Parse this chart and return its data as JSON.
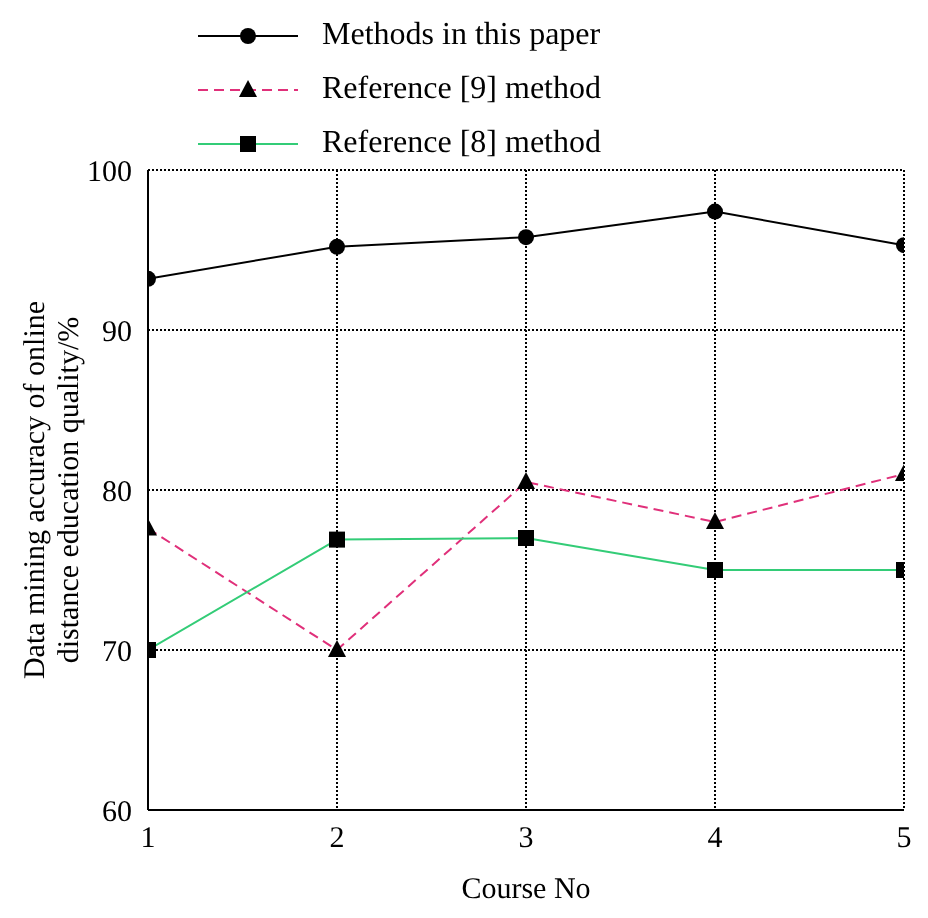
{
  "chart_data": {
    "type": "line",
    "xlabel": "Course No",
    "ylabel": "Data mining accuracy of online distance education quality/%",
    "x": [
      1,
      2,
      3,
      4,
      5
    ],
    "xlim": [
      1,
      5
    ],
    "xticks": [
      1,
      2,
      3,
      4,
      5
    ],
    "ylim": [
      60,
      100
    ],
    "yticks": [
      60,
      70,
      80,
      90,
      100
    ],
    "grid": true,
    "legend": "top",
    "series": [
      {
        "name": "Methods in this paper",
        "color": "#000000",
        "marker": "circle",
        "line_style": "solid",
        "values": [
          93.2,
          95.2,
          95.8,
          97.4,
          95.3
        ]
      },
      {
        "name": "Reference [9] method",
        "color": "#e0307a",
        "marker": "triangle",
        "line_style": "dashed",
        "values": [
          77.6,
          70,
          80.5,
          78,
          81
        ]
      },
      {
        "name": "Reference [8] method",
        "color": "#33cc77",
        "marker": "square",
        "line_style": "solid",
        "values": [
          70,
          76.9,
          77,
          75,
          75
        ]
      }
    ]
  }
}
